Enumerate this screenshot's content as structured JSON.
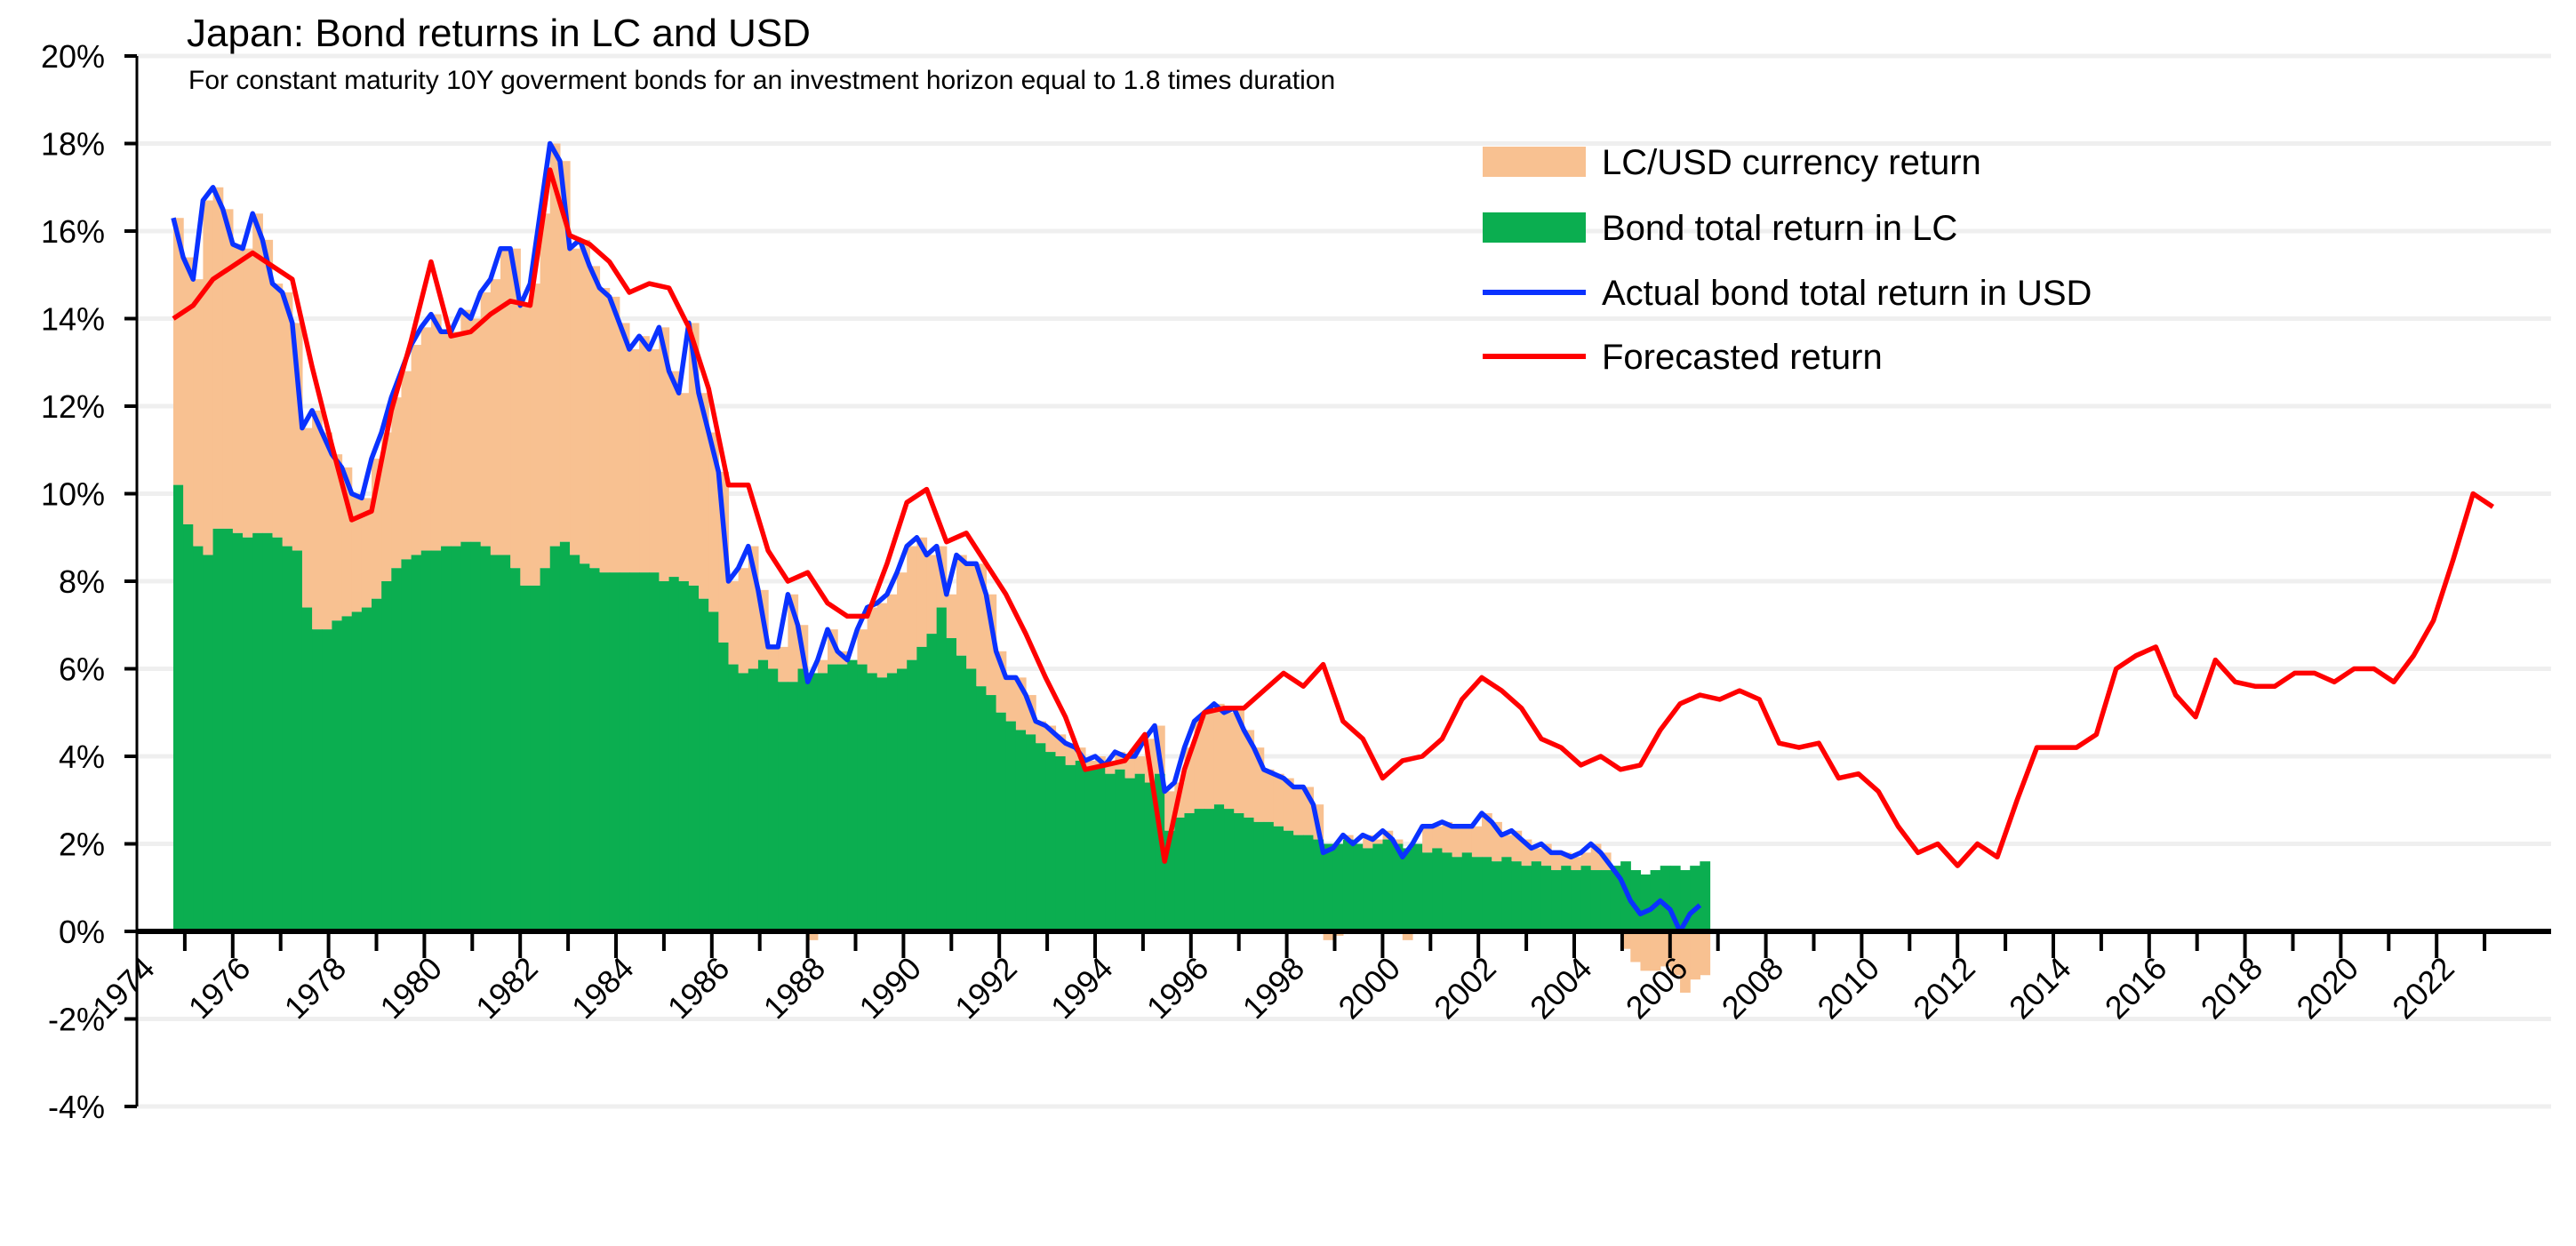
{
  "chart_data": {
    "type": "area+line",
    "title": "Japan: Bond returns in LC and USD",
    "subtitle": "For constant maturity 10Y goverment bonds for an investment horizon equal to 1.8 times duration",
    "xlabel": "",
    "ylabel": "",
    "ylim": [
      -4,
      20
    ],
    "yticks": [
      -4,
      -2,
      0,
      2,
      4,
      6,
      8,
      10,
      12,
      14,
      16,
      18,
      20
    ],
    "ytick_labels": [
      "-4%",
      "-2%",
      "0%",
      "2%",
      "4%",
      "6%",
      "8%",
      "10%",
      "12%",
      "14%",
      "16%",
      "18%",
      "20%"
    ],
    "xlim": [
      1974,
      2024
    ],
    "xtick_labels": [
      "1974",
      "1976",
      "1978",
      "1980",
      "1982",
      "1984",
      "1986",
      "1988",
      "1990",
      "1992",
      "1994",
      "1996",
      "1998",
      "2000",
      "2002",
      "2004",
      "2006",
      "2008",
      "2010",
      "2012",
      "2014",
      "2016",
      "2018",
      "2020",
      "2022"
    ],
    "grid": true,
    "legend_position": "top-right",
    "colors": {
      "currency": "#F8C191",
      "lc": "#0BAE50",
      "usd": "#0A32FF",
      "forecast": "#FF0000",
      "grid": "#EFEFEF",
      "axis": "#000000"
    },
    "series": [
      {
        "name": "LC/USD currency return",
        "kind": "stacked-area",
        "start_year": 1974.76,
        "step_years": 0.2069,
        "values": [
          6.1,
          6.1,
          6.1,
          8.1,
          7.8,
          7.3,
          6.6,
          6.6,
          7.3,
          6.7,
          5.8,
          5.8,
          5.2,
          4.1,
          5.0,
          4.5,
          3.8,
          3.4,
          2.7,
          2.5,
          3.2,
          3.4,
          3.9,
          4.3,
          4.8,
          5.1,
          5.4,
          4.9,
          4.9,
          5.3,
          5.1,
          5.8,
          6.3,
          7.0,
          7.3,
          6.4,
          6.9,
          8.1,
          9.2,
          8.7,
          7.0,
          7.4,
          6.9,
          6.5,
          6.3,
          5.7,
          5.1,
          5.4,
          5.1,
          5.8,
          4.7,
          4.3,
          6.0,
          4.7,
          4.1,
          3.9,
          1.9,
          2.4,
          2.8,
          1.6,
          0.5,
          0.8,
          2.0,
          1.0,
          -0.2,
          0.3,
          0.8,
          0.3,
          0.0,
          0.8,
          1.5,
          1.7,
          1.8,
          2.2,
          2.6,
          2.5,
          1.8,
          1.4,
          1.0,
          2.3,
          2.4,
          2.8,
          2.3,
          1.4,
          1.0,
          1.2,
          0.9,
          0.5,
          0.6,
          0.5,
          0.5,
          0.3,
          0.2,
          0.2,
          0.2,
          0.4,
          0.5,
          0.4,
          1.0,
          1.1,
          0.9,
          0.8,
          1.5,
          2.0,
          2.2,
          2.3,
          2.2,
          2.4,
          2.0,
          1.7,
          1.2,
          1.2,
          1.2,
          1.1,
          1.1,
          0.8,
          -0.2,
          -0.1,
          0.1,
          0.0,
          0.3,
          0.1,
          0.2,
          0.1,
          -0.2,
          0.0,
          0.6,
          0.5,
          0.7,
          0.7,
          0.6,
          0.7,
          1.0,
          0.9,
          0.5,
          0.7,
          0.6,
          0.3,
          0.5,
          0.4,
          0.3,
          0.3,
          0.3,
          0.6,
          0.4,
          0.0,
          -0.4,
          -0.7,
          -0.9,
          -0.9,
          -0.8,
          -1.0,
          -1.4,
          -1.1,
          -1.0
        ]
      },
      {
        "name": "Bond total return in LC",
        "kind": "area",
        "start_year": 1974.76,
        "step_years": 0.2069,
        "values": [
          10.2,
          9.3,
          8.8,
          8.6,
          9.2,
          9.2,
          9.1,
          9.0,
          9.1,
          9.1,
          9.0,
          8.8,
          8.7,
          7.4,
          6.9,
          6.9,
          7.1,
          7.2,
          7.3,
          7.4,
          7.6,
          8.0,
          8.3,
          8.5,
          8.6,
          8.7,
          8.7,
          8.8,
          8.8,
          8.9,
          8.9,
          8.8,
          8.6,
          8.6,
          8.3,
          7.9,
          7.9,
          8.3,
          8.8,
          8.9,
          8.6,
          8.4,
          8.3,
          8.2,
          8.2,
          8.2,
          8.2,
          8.2,
          8.2,
          8.0,
          8.1,
          8.0,
          7.9,
          7.6,
          7.3,
          6.6,
          6.1,
          5.9,
          6.0,
          6.2,
          6.0,
          5.7,
          5.7,
          6.0,
          5.9,
          5.9,
          6.1,
          6.1,
          6.2,
          6.1,
          5.9,
          5.8,
          5.9,
          6.0,
          6.2,
          6.5,
          6.8,
          7.4,
          6.7,
          6.3,
          6.0,
          5.6,
          5.4,
          5.0,
          4.8,
          4.6,
          4.5,
          4.3,
          4.1,
          4.0,
          3.8,
          3.9,
          3.7,
          3.8,
          3.6,
          3.7,
          3.5,
          3.6,
          3.4,
          3.6,
          2.3,
          2.6,
          2.7,
          2.8,
          2.8,
          2.9,
          2.8,
          2.7,
          2.6,
          2.5,
          2.5,
          2.4,
          2.3,
          2.2,
          2.2,
          2.1,
          2.0,
          2.0,
          2.1,
          2.0,
          1.9,
          2.0,
          2.1,
          2.0,
          1.9,
          2.0,
          1.8,
          1.9,
          1.8,
          1.7,
          1.8,
          1.7,
          1.7,
          1.6,
          1.7,
          1.6,
          1.5,
          1.6,
          1.5,
          1.4,
          1.5,
          1.4,
          1.5,
          1.4,
          1.4,
          1.5,
          1.6,
          1.4,
          1.3,
          1.4,
          1.5,
          1.5,
          1.4,
          1.5,
          1.6
        ]
      },
      {
        "name": "Actual bond total return in USD",
        "kind": "line",
        "start_year": 1974.76,
        "step_years": 0.2069,
        "values": [
          16.3,
          15.4,
          14.9,
          16.7,
          17.0,
          16.5,
          15.7,
          15.6,
          16.4,
          15.8,
          14.8,
          14.6,
          13.9,
          11.5,
          11.9,
          11.4,
          10.9,
          10.6,
          10.0,
          9.9,
          10.8,
          11.4,
          12.2,
          12.8,
          13.4,
          13.8,
          14.1,
          13.7,
          13.7,
          14.2,
          14.0,
          14.6,
          14.9,
          15.6,
          15.6,
          14.3,
          14.8,
          16.4,
          18.0,
          17.6,
          15.6,
          15.8,
          15.2,
          14.7,
          14.5,
          13.9,
          13.3,
          13.6,
          13.3,
          13.8,
          12.8,
          12.3,
          13.9,
          12.3,
          11.4,
          10.5,
          8.0,
          8.3,
          8.8,
          7.8,
          6.5,
          6.5,
          7.7,
          7.0,
          5.7,
          6.2,
          6.9,
          6.4,
          6.2,
          6.9,
          7.4,
          7.5,
          7.7,
          8.2,
          8.8,
          9.0,
          8.6,
          8.8,
          7.7,
          8.6,
          8.4,
          8.4,
          7.7,
          6.4,
          5.8,
          5.8,
          5.4,
          4.8,
          4.7,
          4.5,
          4.3,
          4.2,
          3.9,
          4.0,
          3.8,
          4.1,
          4.0,
          4.0,
          4.4,
          4.7,
          3.2,
          3.4,
          4.2,
          4.8,
          5.0,
          5.2,
          5.0,
          5.1,
          4.6,
          4.2,
          3.7,
          3.6,
          3.5,
          3.3,
          3.3,
          2.9,
          1.8,
          1.9,
          2.2,
          2.0,
          2.2,
          2.1,
          2.3,
          2.1,
          1.7,
          2.0,
          2.4,
          2.4,
          2.5,
          2.4,
          2.4,
          2.4,
          2.7,
          2.5,
          2.2,
          2.3,
          2.1,
          1.9,
          2.0,
          1.8,
          1.8,
          1.7,
          1.8,
          2.0,
          1.8,
          1.5,
          1.2,
          0.7,
          0.4,
          0.5,
          0.7,
          0.5,
          0.0,
          0.4,
          0.6
        ]
      },
      {
        "name": "Forecasted return",
        "kind": "line",
        "start_year": 1974.76,
        "step_years": 0.4138,
        "values": [
          14.0,
          14.3,
          14.9,
          15.2,
          15.5,
          15.2,
          14.9,
          12.9,
          11.1,
          9.4,
          9.6,
          11.9,
          13.5,
          15.3,
          13.6,
          13.7,
          14.1,
          14.4,
          14.3,
          17.4,
          15.9,
          15.7,
          15.3,
          14.6,
          14.8,
          14.7,
          13.8,
          12.4,
          10.2,
          10.2,
          8.7,
          8.0,
          8.2,
          7.5,
          7.2,
          7.2,
          8.4,
          9.8,
          10.1,
          8.9,
          9.1,
          8.4,
          7.7,
          6.8,
          5.8,
          4.9,
          3.7,
          3.8,
          3.9,
          4.5,
          1.6,
          3.7,
          5.0,
          5.1,
          5.1,
          5.5,
          5.9,
          5.6,
          6.1,
          4.8,
          4.4,
          3.5,
          3.9,
          4.0,
          4.4,
          5.3,
          5.8,
          5.5,
          5.1,
          4.4,
          4.2,
          3.8,
          4.0,
          3.7,
          3.8,
          4.6,
          5.2,
          5.4,
          5.3,
          5.5,
          5.3,
          4.3,
          4.2,
          4.3,
          3.5,
          3.6,
          3.2,
          2.4,
          1.8,
          2.0,
          1.5,
          2.0,
          1.7,
          3.0,
          4.2,
          4.2,
          4.2,
          4.5,
          6.0,
          6.3,
          6.5,
          5.4,
          4.9,
          6.2,
          5.7,
          5.6,
          5.6,
          5.9,
          5.9,
          5.7,
          6.0,
          6.0,
          5.7,
          6.3,
          7.1,
          8.5,
          10.0,
          9.7
        ]
      }
    ]
  }
}
